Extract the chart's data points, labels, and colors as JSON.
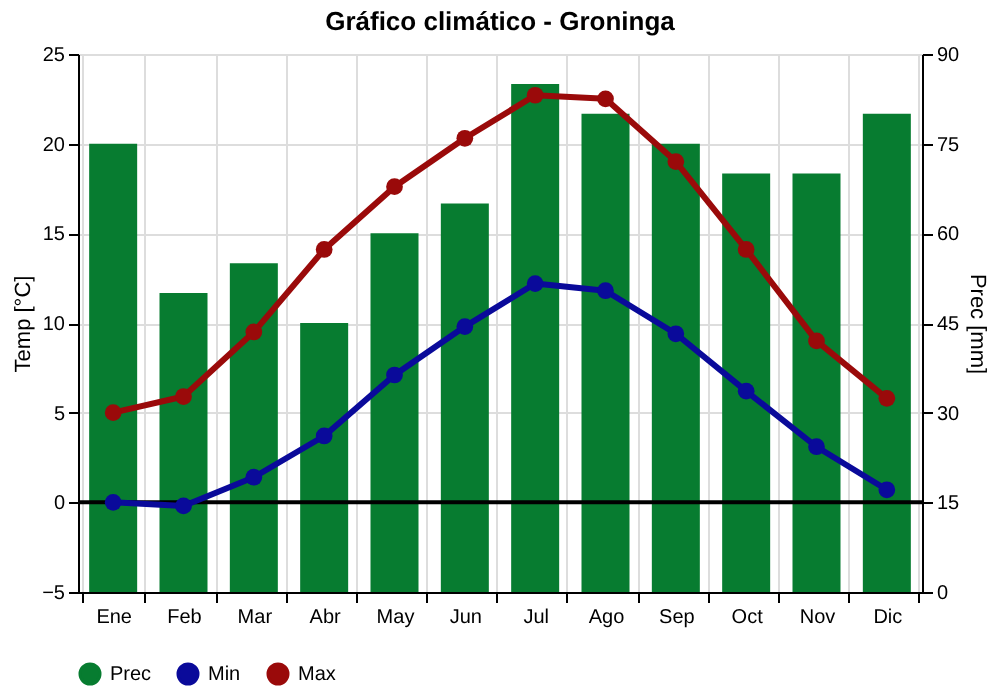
{
  "chart_data": {
    "type": "bar",
    "title": "Gráfico climático - Groninga",
    "ylabel": "Temp [°C]",
    "y2label": "Prec [mm]",
    "categories": [
      "Ene",
      "Feb",
      "Mar",
      "Abr",
      "May",
      "Jun",
      "Jul",
      "Ago",
      "Sep",
      "Oct",
      "Nov",
      "Dic"
    ],
    "series": [
      {
        "name": "Prec",
        "axis": "y2",
        "color": "#077c30",
        "values": [
          75,
          50,
          55,
          45,
          60,
          65,
          85,
          80,
          75,
          70,
          70,
          80
        ]
      },
      {
        "name": "Min",
        "type": "line",
        "color": "#0a0a9a",
        "values": [
          0.0,
          -0.2,
          1.4,
          3.7,
          7.1,
          9.8,
          12.2,
          11.8,
          9.4,
          6.2,
          3.1,
          0.7
        ]
      },
      {
        "name": "Max",
        "type": "line",
        "color": "#9a0a0a",
        "values": [
          5.0,
          5.9,
          9.5,
          14.1,
          17.6,
          20.3,
          22.7,
          22.5,
          19.0,
          14.1,
          9.0,
          5.8
        ]
      }
    ],
    "ylim": [
      -5,
      25
    ],
    "yticks": [
      -5,
      0,
      5,
      10,
      15,
      20,
      25
    ],
    "y2lim": [
      0,
      90
    ],
    "y2ticks": [
      0,
      15,
      30,
      45,
      60,
      75,
      90
    ],
    "ref_lines": [
      {
        "axis": "y",
        "value": 0,
        "color": "#000000"
      }
    ],
    "grid": true,
    "legend": "bottom",
    "marker": "circle",
    "line_style": "solid"
  }
}
